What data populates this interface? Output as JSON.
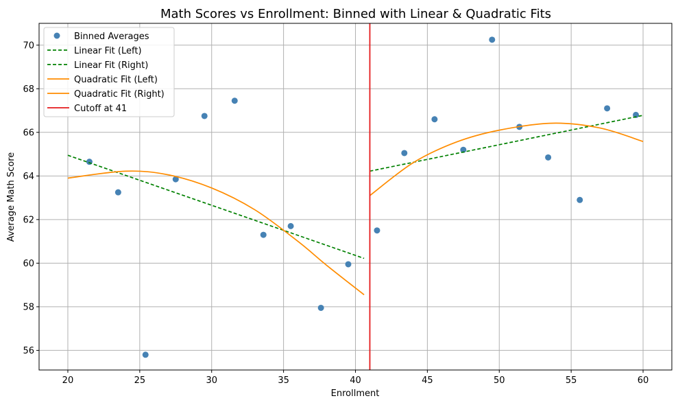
{
  "chart_data": {
    "type": "scatter",
    "title": "Math Scores vs Enrollment: Binned with Linear & Quadratic Fits",
    "xlabel": "Enrollment",
    "ylabel": "Average Math Score",
    "xlim": [
      18,
      62
    ],
    "ylim": [
      55.1,
      71.0
    ],
    "xticks": [
      20,
      25,
      30,
      35,
      40,
      45,
      50,
      55,
      60
    ],
    "yticks": [
      56,
      58,
      60,
      62,
      64,
      66,
      68,
      70
    ],
    "grid": true,
    "legend_position": "top-left",
    "cutoff": 41,
    "colors": {
      "points": "#4682b4",
      "linear": "#008000",
      "quadratic": "#ff8c00",
      "cutoff": "#e41a1c",
      "grid": "#b0b0b0"
    },
    "points": {
      "name": "Binned Averages",
      "x": [
        21.5,
        23.5,
        25.4,
        27.5,
        29.5,
        31.6,
        33.6,
        35.5,
        37.6,
        39.5,
        41.5,
        43.4,
        45.5,
        47.5,
        49.5,
        51.4,
        53.4,
        55.6,
        57.5,
        59.5
      ],
      "y": [
        64.65,
        63.25,
        55.8,
        63.85,
        66.75,
        67.45,
        61.3,
        61.7,
        57.95,
        59.95,
        61.5,
        65.05,
        66.6,
        65.2,
        70.25,
        66.25,
        64.85,
        62.9,
        67.1,
        66.8
      ]
    },
    "linear_left": {
      "name": "Linear Fit (Left)",
      "x": [
        20,
        40.6
      ],
      "y": [
        64.95,
        60.22
      ]
    },
    "linear_right": {
      "name": "Linear Fit (Right)",
      "x": [
        41,
        60
      ],
      "y": [
        64.22,
        66.78
      ]
    },
    "quadratic_left": {
      "name": "Quadratic Fit (Left)",
      "x": [
        20,
        24,
        27,
        30,
        33,
        36,
        38,
        40.6
      ],
      "y": [
        63.9,
        64.22,
        64.05,
        63.45,
        62.45,
        61.0,
        59.9,
        58.55
      ]
    },
    "quadratic_right": {
      "name": "Quadratic Fit (Right)",
      "x": [
        41,
        44,
        47,
        50,
        53.7,
        57,
        60
      ],
      "y": [
        63.1,
        64.6,
        65.55,
        66.1,
        66.42,
        66.2,
        65.58
      ]
    },
    "cutoff_line": {
      "name": "Cutoff at 41"
    }
  }
}
